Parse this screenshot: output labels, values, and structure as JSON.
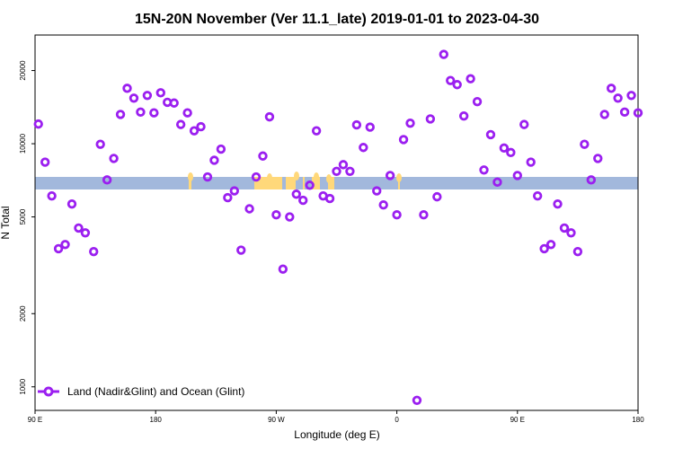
{
  "chart_data": {
    "type": "scatter",
    "title": "15N-20N November (Ver 11.1_late)   2019-01-01 to 2023-04-30",
    "xlabel": "Longitude (deg E)",
    "ylabel": "N Total",
    "xlim": [
      90,
      450
    ],
    "ylim": [
      800,
      28000
    ],
    "yscale": "log",
    "x_ticks": [
      {
        "value": 90,
        "label": "90 E"
      },
      {
        "value": 162,
        "label": "180"
      },
      {
        "value": 234,
        "label": "90 W"
      },
      {
        "value": 306,
        "label": "0"
      },
      {
        "value": 378,
        "label": "90 E"
      },
      {
        "value": 450,
        "label": "180"
      }
    ],
    "y_ticks": [
      {
        "value": 1000,
        "label": "1000"
      },
      {
        "value": 2000,
        "label": "2000"
      },
      {
        "value": 5000,
        "label": "5000"
      },
      {
        "value": 10000,
        "label": "10000"
      },
      {
        "value": 20000,
        "label": "20000"
      }
    ],
    "grid": false,
    "legend_position": "bottom-left",
    "series": [
      {
        "name": "Land (Nadir&Glint) and Ocean (Glint)",
        "color": "#9b1ff0",
        "marker": "open-circle",
        "points": [
          [
            92,
            12050
          ],
          [
            96,
            8400
          ],
          [
            100,
            6100
          ],
          [
            104,
            3700
          ],
          [
            108,
            3850
          ],
          [
            112,
            5650
          ],
          [
            116,
            4500
          ],
          [
            120,
            4300
          ],
          [
            125,
            3600
          ],
          [
            129,
            9950
          ],
          [
            133,
            7100
          ],
          [
            137,
            8700
          ],
          [
            141,
            13200
          ],
          [
            145,
            16900
          ],
          [
            149,
            15400
          ],
          [
            153,
            13500
          ],
          [
            157,
            15800
          ],
          [
            161,
            13400
          ],
          [
            165,
            16200
          ],
          [
            169,
            14800
          ],
          [
            173,
            14700
          ],
          [
            177,
            12000
          ],
          [
            181,
            13400
          ],
          [
            185,
            11300
          ],
          [
            189,
            11750
          ],
          [
            193,
            7300
          ],
          [
            197,
            8550
          ],
          [
            201,
            9500
          ],
          [
            205,
            6000
          ],
          [
            209,
            6400
          ],
          [
            213,
            3650
          ],
          [
            218,
            5400
          ],
          [
            222,
            7300
          ],
          [
            226,
            8900
          ],
          [
            230,
            12900
          ],
          [
            234,
            5100
          ],
          [
            238,
            3050
          ],
          [
            242,
            5000
          ],
          [
            246,
            6200
          ],
          [
            250,
            5850
          ],
          [
            254,
            6750
          ],
          [
            258,
            11300
          ],
          [
            262,
            6100
          ],
          [
            266,
            5950
          ],
          [
            270,
            7700
          ],
          [
            274,
            8200
          ],
          [
            278,
            7700
          ],
          [
            282,
            11950
          ],
          [
            286,
            9650
          ],
          [
            290,
            11700
          ],
          [
            294,
            6400
          ],
          [
            298,
            5600
          ],
          [
            302,
            7400
          ],
          [
            306,
            5100
          ],
          [
            310,
            10400
          ],
          [
            314,
            12150
          ],
          [
            318,
            880
          ],
          [
            322,
            5100
          ],
          [
            326,
            12650
          ],
          [
            330,
            6050
          ],
          [
            334,
            23300
          ],
          [
            338,
            18200
          ],
          [
            342,
            17500
          ],
          [
            346,
            13000
          ],
          [
            350,
            18500
          ],
          [
            354,
            14900
          ],
          [
            358,
            7800
          ],
          [
            362,
            10900
          ],
          [
            366,
            6950
          ],
          [
            370,
            9600
          ],
          [
            374,
            9200
          ],
          [
            378,
            7400
          ],
          [
            382,
            12000
          ],
          [
            386,
            8400
          ],
          [
            390,
            6100
          ],
          [
            394,
            3700
          ],
          [
            398,
            3850
          ],
          [
            402,
            5650
          ],
          [
            406,
            4500
          ],
          [
            410,
            4300
          ],
          [
            414,
            3600
          ],
          [
            418,
            9950
          ],
          [
            422,
            7100
          ],
          [
            426,
            8700
          ],
          [
            430,
            13200
          ],
          [
            434,
            16900
          ],
          [
            438,
            15400
          ],
          [
            442,
            13500
          ],
          [
            446,
            15800
          ],
          [
            450,
            13400
          ]
        ]
      }
    ],
    "background_bands": [
      {
        "name": "ocean",
        "color": "#a2b8dc"
      },
      {
        "name": "land",
        "color": "#ffd87a"
      }
    ]
  }
}
